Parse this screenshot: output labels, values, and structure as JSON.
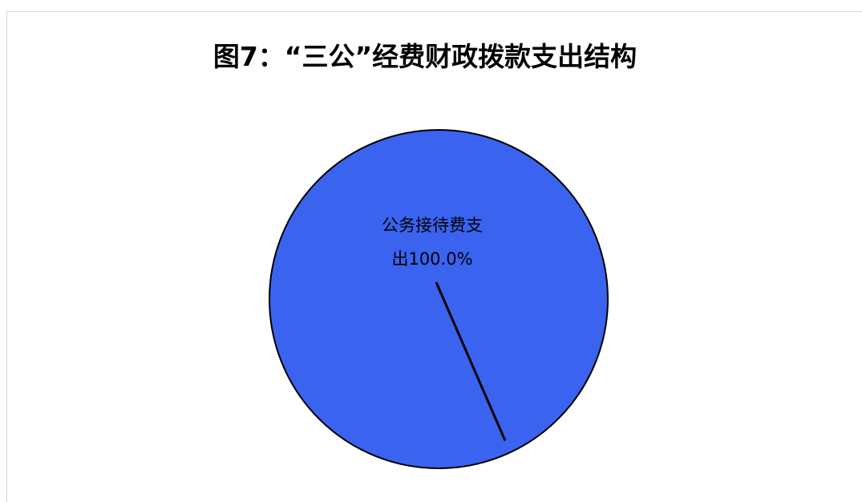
{
  "chart_data": {
    "type": "pie",
    "title": "图7：“三公”经费财政拨款支出结构",
    "slices": [
      {
        "name": "公务接待费支出",
        "value": 100.0,
        "label_lines": [
          "公务接待费支",
          "出100.0%"
        ],
        "color": "#3a63f0"
      }
    ],
    "legend": "none"
  }
}
